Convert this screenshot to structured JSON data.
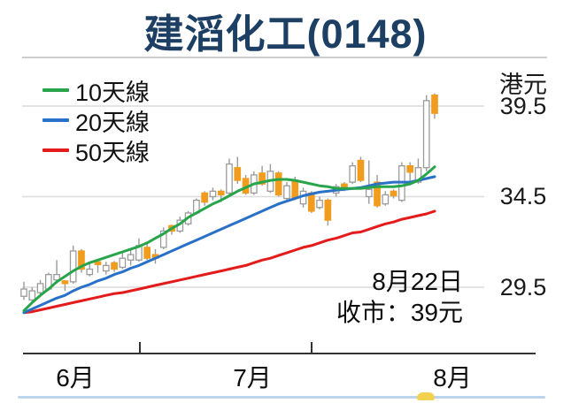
{
  "title": "建滔化工(0148)",
  "legend": [
    {
      "label": "10天線",
      "color": "#28a54a"
    },
    {
      "label": "20天線",
      "color": "#2970c8"
    },
    {
      "label": "50天線",
      "color": "#e31b1b"
    }
  ],
  "y_axis": {
    "unit": "港元",
    "ticks": [
      "39.5",
      "34.5",
      "29.5"
    ]
  },
  "x_axis": {
    "labels": [
      "6月",
      "7月",
      "8月"
    ]
  },
  "annotation": {
    "date": "8月22日",
    "close": "收市：39元"
  },
  "chart_data": {
    "type": "candlestick",
    "title": "建滔化工(0148)",
    "price_unit": "港元 (HKD)",
    "y_gridlines": [
      39.5,
      34.5,
      29.5
    ],
    "x_months": [
      "6月",
      "7月",
      "8月"
    ],
    "last_close": 39,
    "legend_position": "top-left",
    "colors": {
      "up_fill": "#f19c1c",
      "hollow_fill": "#ffffff",
      "wick": "#9b9b9b",
      "grid": "#dcdcdc",
      "axis": "#333333"
    },
    "candle_format": "[high, body_top, body_bottom, low, fill] fill: o=orange filled, w=white hollow",
    "candles": [
      [
        29.8,
        29.4,
        29.0,
        28.8,
        "w"
      ],
      [
        29.5,
        29.3,
        28.8,
        28.6,
        "w"
      ],
      [
        29.9,
        29.7,
        29.2,
        29.0,
        "w"
      ],
      [
        30.3,
        30.2,
        29.4,
        29.3,
        "w"
      ],
      [
        31.0,
        30.2,
        29.9,
        29.7,
        "w"
      ],
      [
        29.9,
        29.85,
        29.7,
        29.3,
        "o"
      ],
      [
        31.8,
        31.5,
        29.8,
        29.7,
        "w"
      ],
      [
        31.6,
        31.5,
        30.5,
        30.3,
        "o"
      ],
      [
        30.8,
        30.5,
        30.2,
        30.1,
        "w"
      ],
      [
        30.95,
        30.9,
        30.75,
        30.3,
        "o"
      ],
      [
        30.9,
        30.7,
        30.4,
        30.2,
        "w"
      ],
      [
        30.95,
        30.85,
        30.5,
        30.35,
        "o"
      ],
      [
        31.4,
        31.1,
        30.6,
        30.5,
        "w"
      ],
      [
        31.6,
        31.3,
        31.0,
        30.7,
        "w"
      ],
      [
        32.2,
        31.8,
        31.0,
        30.9,
        "w"
      ],
      [
        31.9,
        31.7,
        31.1,
        31.0,
        "o"
      ],
      [
        31.6,
        31.3,
        31.1,
        30.8,
        "o"
      ],
      [
        32.8,
        32.6,
        31.7,
        31.6,
        "w"
      ],
      [
        32.95,
        32.9,
        32.6,
        32.4,
        "o"
      ],
      [
        33.4,
        33.2,
        32.6,
        32.5,
        "w"
      ],
      [
        33.7,
        33.6,
        33.0,
        32.9,
        "w"
      ],
      [
        34.4,
        34.3,
        33.6,
        33.5,
        "w"
      ],
      [
        34.8,
        34.7,
        34.2,
        34.0,
        "o"
      ],
      [
        35.0,
        34.8,
        34.5,
        34.3,
        "w"
      ],
      [
        34.9,
        34.8,
        34.6,
        34.2,
        "o"
      ],
      [
        36.6,
        36.3,
        34.7,
        34.6,
        "w"
      ],
      [
        36.7,
        36.1,
        35.4,
        35.2,
        "o"
      ],
      [
        35.7,
        35.5,
        34.7,
        34.6,
        "o"
      ],
      [
        35.9,
        35.7,
        34.7,
        34.6,
        "w"
      ],
      [
        36.2,
        35.8,
        35.2,
        35.1,
        "o"
      ],
      [
        36.3,
        35.9,
        34.8,
        34.7,
        "w"
      ],
      [
        35.9,
        35.8,
        34.6,
        34.5,
        "o"
      ],
      [
        35.3,
        35.1,
        34.4,
        34.3,
        "w"
      ],
      [
        35.6,
        35.4,
        34.4,
        34.3,
        "o"
      ],
      [
        35.0,
        34.8,
        34.1,
        33.9,
        "w"
      ],
      [
        34.8,
        34.7,
        33.7,
        33.6,
        "o"
      ],
      [
        34.5,
        34.3,
        33.9,
        33.8,
        "w"
      ],
      [
        34.4,
        34.3,
        33.2,
        32.9,
        "o"
      ],
      [
        35.2,
        35.05,
        34.7,
        34.5,
        "w"
      ],
      [
        35.3,
        35.2,
        34.9,
        34.8,
        "o"
      ],
      [
        36.4,
        36.2,
        35.3,
        35.2,
        "w"
      ],
      [
        36.7,
        36.5,
        35.4,
        35.3,
        "o"
      ],
      [
        36.5,
        34.9,
        34.5,
        34.1,
        "w"
      ],
      [
        35.7,
        35.3,
        34.0,
        33.9,
        "o"
      ],
      [
        34.8,
        34.6,
        34.1,
        34.0,
        "w"
      ],
      [
        34.9,
        34.8,
        34.55,
        34.4,
        "o"
      ],
      [
        36.4,
        36.2,
        34.3,
        34.2,
        "w"
      ],
      [
        36.4,
        36.2,
        35.85,
        35.3,
        "o"
      ],
      [
        36.6,
        36.1,
        35.3,
        35.2,
        "w"
      ],
      [
        40.1,
        39.8,
        36.1,
        35.9,
        "w"
      ],
      [
        40.2,
        40.1,
        39.1,
        38.8,
        "o"
      ]
    ],
    "series": [
      {
        "name": "10天線",
        "color": "#28a54a",
        "values": [
          28.2,
          28.65,
          29.05,
          29.4,
          29.8,
          30.1,
          30.4,
          30.65,
          30.85,
          31.0,
          31.15,
          31.3,
          31.45,
          31.6,
          31.75,
          31.95,
          32.2,
          32.45,
          32.75,
          33.0,
          33.35,
          33.6,
          33.85,
          34.1,
          34.3,
          34.55,
          34.8,
          35.0,
          35.2,
          35.3,
          35.4,
          35.45,
          35.45,
          35.4,
          35.3,
          35.2,
          35.1,
          35.05,
          34.95,
          34.95,
          34.95,
          34.95,
          35.0,
          35.05,
          35.05,
          35.05,
          35.1,
          35.2,
          35.4,
          35.75,
          36.15
        ]
      },
      {
        "name": "20天線",
        "color": "#2970c8",
        "values": [
          28.1,
          28.3,
          28.5,
          28.7,
          28.9,
          29.05,
          29.3,
          29.5,
          29.65,
          29.85,
          30.0,
          30.2,
          30.35,
          30.55,
          30.7,
          30.9,
          31.1,
          31.3,
          31.5,
          31.7,
          31.9,
          32.1,
          32.3,
          32.5,
          32.7,
          32.9,
          33.1,
          33.3,
          33.5,
          33.7,
          33.9,
          34.1,
          34.25,
          34.4,
          34.55,
          34.65,
          34.75,
          34.8,
          34.85,
          34.9,
          34.95,
          35.0,
          35.1,
          35.2,
          35.25,
          35.3,
          35.3,
          35.3,
          35.4,
          35.5,
          35.6
        ]
      },
      {
        "name": "50天線",
        "color": "#e31b1b",
        "values": [
          28.1,
          28.15,
          28.25,
          28.35,
          28.45,
          28.55,
          28.65,
          28.75,
          28.85,
          28.95,
          29.05,
          29.15,
          29.2,
          29.3,
          29.4,
          29.5,
          29.6,
          29.7,
          29.8,
          29.9,
          30.0,
          30.1,
          30.2,
          30.3,
          30.4,
          30.5,
          30.6,
          30.7,
          30.85,
          31.0,
          31.1,
          31.25,
          31.4,
          31.55,
          31.7,
          31.8,
          31.95,
          32.1,
          32.2,
          32.35,
          32.5,
          32.55,
          32.7,
          32.85,
          33.0,
          33.1,
          33.25,
          33.35,
          33.45,
          33.55,
          33.7
        ]
      }
    ]
  }
}
